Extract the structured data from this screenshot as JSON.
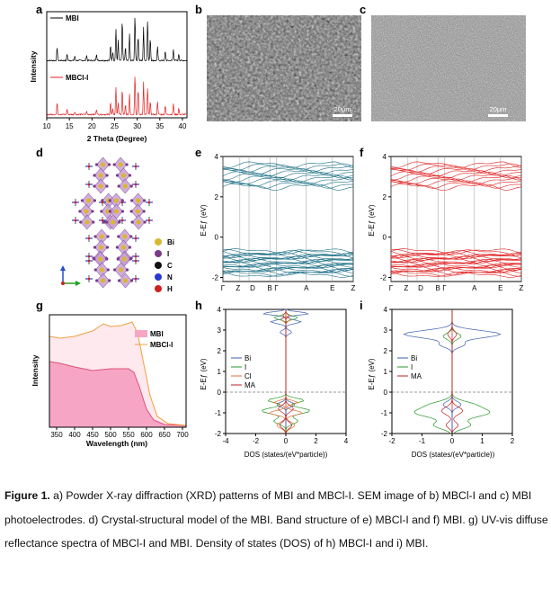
{
  "panels": {
    "a": {
      "label": "a",
      "ylabel": "Intensity",
      "xlabel": "2 Theta (Degree)",
      "legend_top": "MBI",
      "legend_bottom": "MBCl-I",
      "xticks": [
        "10",
        "15",
        "20",
        "25",
        "30",
        "35",
        "40"
      ]
    },
    "b": {
      "label": "b",
      "scale": "20μm"
    },
    "c": {
      "label": "c",
      "scale": "20μm"
    },
    "d": {
      "label": "d",
      "legend": [
        "Bi",
        "I",
        "C",
        "N",
        "H"
      ]
    },
    "e": {
      "label": "e",
      "ylabel": "E-Eƒ (eV)",
      "yticks": [
        "4",
        "2",
        "0",
        "-2"
      ],
      "kpoints": [
        "Γ",
        "Z",
        "D",
        "B",
        "Γ",
        "A",
        "E",
        "Z"
      ]
    },
    "f": {
      "label": "f",
      "ylabel": "E-Eƒ (eV)",
      "yticks": [
        "4",
        "2",
        "0",
        "-2"
      ],
      "kpoints": [
        "Γ",
        "Z",
        "D",
        "B",
        "Γ",
        "A",
        "E",
        "Z"
      ]
    },
    "g": {
      "label": "g",
      "ylabel": "Intensity",
      "xlabel": "Wavelength (nm)",
      "legend": [
        "MBI",
        "MBCl-I"
      ],
      "xticks": [
        "350",
        "400",
        "450",
        "500",
        "550",
        "600",
        "650",
        "700"
      ]
    },
    "h": {
      "label": "h",
      "ylabel": "E-Eƒ (eV)",
      "xlabel": "DOS (states/(eV*particle))",
      "yticks": [
        "4",
        "3",
        "2",
        "1",
        "0",
        "-1",
        "-2"
      ],
      "xticks": [
        "-4",
        "-2",
        "0",
        "2",
        "4"
      ],
      "legend": [
        "Bi",
        "I",
        "Cl",
        "MA"
      ]
    },
    "i": {
      "label": "i",
      "ylabel": "E-Eƒ (eV)",
      "xlabel": "DOS (states/(eV*particle))",
      "yticks": [
        "4",
        "3",
        "2",
        "1",
        "0",
        "-1",
        "-2"
      ],
      "xticks": [
        "-2",
        "-1",
        "0",
        "1",
        "2"
      ],
      "legend": [
        "Bi",
        "I",
        "MA"
      ]
    }
  },
  "colors": {
    "black": "#000000",
    "red": "#e02020",
    "teal": "#1b6f86",
    "pink": "#f6a6c4",
    "orange": "#f0a040",
    "bi": "#3a5fb0",
    "i": "#2a9a2a",
    "cl": "#e07030",
    "ma": "#c02020"
  },
  "caption": {
    "heading": "Figure 1.",
    "text": " a) Powder X-ray diffraction (XRD) patterns of MBI and MBCl-I. SEM image of b) MBCl-I and c) MBI photoelectrodes. d) Crystal-structural model of the MBI. Band structure of e) MBCl-I and f) MBI. g) UV-vis diffuse reflectance spectra of MBCl-I and MBI. Density of states (DOS) of h) MBCl-I and i) MBI."
  }
}
